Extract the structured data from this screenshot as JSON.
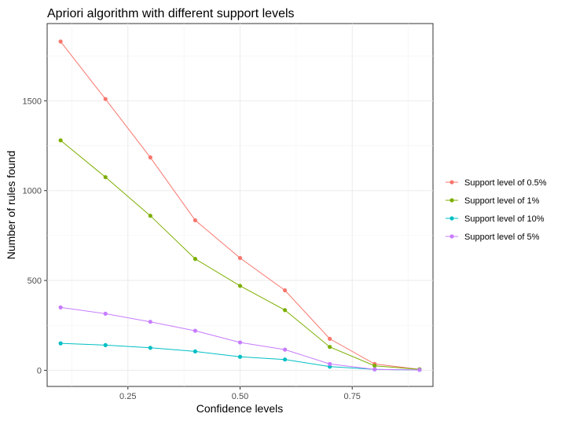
{
  "chart_data": {
    "type": "line",
    "title": "Apriori algorithm with different support levels",
    "xlabel": "Confidence levels",
    "ylabel": "Number of rules found",
    "x": [
      0.1,
      0.2,
      0.3,
      0.4,
      0.5,
      0.6,
      0.7,
      0.8,
      0.9
    ],
    "xlim": [
      0.07,
      0.93
    ],
    "ylim": [
      -90,
      1930
    ],
    "xticks": [
      0.25,
      0.5,
      0.75
    ],
    "xtick_labels": [
      "0.25",
      "0.50",
      "0.75"
    ],
    "yticks": [
      0,
      500,
      1000,
      1500
    ],
    "ytick_labels": [
      "0",
      "500",
      "1000",
      "1500"
    ],
    "grid": true,
    "legend_position": "right",
    "series": [
      {
        "name": "Support level of 0.5%",
        "color": "#F8766D",
        "values": [
          1830,
          1510,
          1185,
          835,
          625,
          445,
          175,
          35,
          5
        ]
      },
      {
        "name": "Support level of 1%",
        "color": "#7CAE00",
        "values": [
          1280,
          1075,
          860,
          620,
          470,
          335,
          130,
          25,
          5
        ]
      },
      {
        "name": "Support level of 10%",
        "color": "#00BFC4",
        "values": [
          150,
          140,
          125,
          105,
          75,
          60,
          20,
          5,
          2
        ]
      },
      {
        "name": "Support level of 5%",
        "color": "#C77CFF",
        "values": [
          350,
          315,
          270,
          220,
          155,
          115,
          35,
          5,
          2
        ]
      }
    ]
  }
}
